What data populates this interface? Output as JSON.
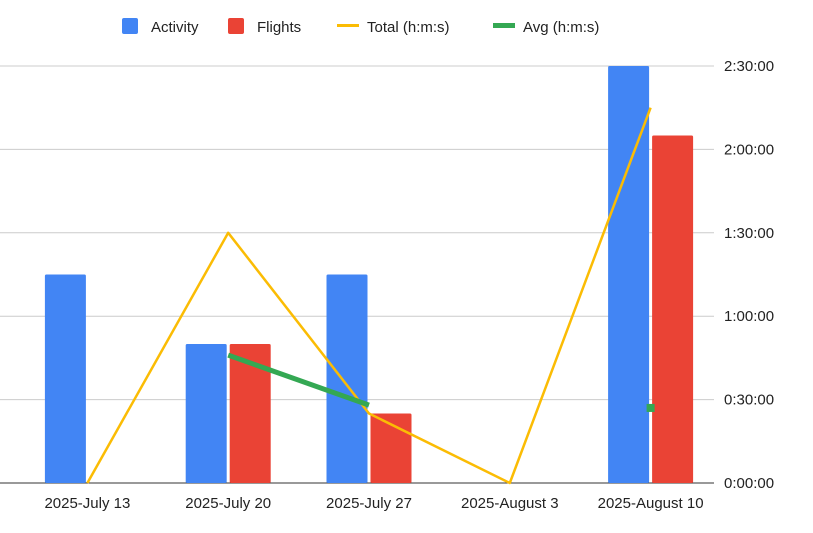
{
  "chart_data": {
    "type": "bar",
    "categories": [
      "2025-July 13",
      "2025-July 20",
      "2025-July 27",
      "2025-August 3",
      "2025-August 10"
    ],
    "series": [
      {
        "name": "Activity",
        "kind": "bar",
        "color": "#4285F4",
        "values": [
          75,
          50,
          75,
          0,
          150
        ]
      },
      {
        "name": "Flights",
        "kind": "bar",
        "color": "#EA4335",
        "values": [
          0,
          50,
          25,
          0,
          125
        ]
      },
      {
        "name": "Total (h:m:s)",
        "kind": "line",
        "color": "#FBBC04",
        "values": [
          0,
          90,
          25,
          0,
          135
        ]
      },
      {
        "name": "Avg (h:m:s)",
        "kind": "line",
        "color": "#34A853",
        "values": [
          null,
          46,
          28,
          null,
          27
        ]
      }
    ],
    "yaxis": {
      "side": "right",
      "ylim": [
        0,
        150
      ],
      "unit": "minutes",
      "ticks": [
        0,
        30,
        60,
        90,
        120,
        150
      ],
      "tick_labels": [
        "0:00:00",
        "0:30:00",
        "1:00:00",
        "1:30:00",
        "2:00:00",
        "2:30:00"
      ]
    },
    "legend_position": "top",
    "grid": true
  }
}
